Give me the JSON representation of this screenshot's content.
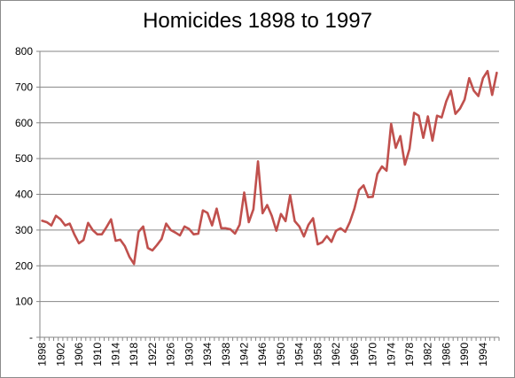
{
  "chart_data": {
    "type": "line",
    "title": "Homicides 1898 to 1997",
    "xlabel": "",
    "ylabel": "",
    "ylim": [
      0,
      800
    ],
    "yticks": [
      0,
      100,
      200,
      300,
      400,
      500,
      600,
      700,
      800
    ],
    "ytick_labels": [
      "-",
      "100",
      "200",
      "300",
      "400",
      "500",
      "600",
      "700",
      "800"
    ],
    "x_tick_labels": [
      "1898",
      "1902",
      "1906",
      "1910",
      "1914",
      "1918",
      "1922",
      "1926",
      "1930",
      "1934",
      "1938",
      "1942",
      "1946",
      "1950",
      "1954",
      "1958",
      "1962",
      "1966",
      "1970",
      "1974",
      "1978",
      "1982",
      "1986",
      "1990",
      "1994"
    ],
    "grid": "horizontal",
    "legend": "none",
    "line_color": "#c0504d",
    "x": [
      1898,
      1899,
      1900,
      1901,
      1902,
      1903,
      1904,
      1905,
      1906,
      1907,
      1908,
      1909,
      1910,
      1911,
      1912,
      1913,
      1914,
      1915,
      1916,
      1917,
      1918,
      1919,
      1920,
      1921,
      1922,
      1923,
      1924,
      1925,
      1926,
      1927,
      1928,
      1929,
      1930,
      1931,
      1932,
      1933,
      1934,
      1935,
      1936,
      1937,
      1938,
      1939,
      1940,
      1941,
      1942,
      1943,
      1944,
      1945,
      1946,
      1947,
      1948,
      1949,
      1950,
      1951,
      1952,
      1953,
      1954,
      1955,
      1956,
      1957,
      1958,
      1959,
      1960,
      1961,
      1962,
      1963,
      1964,
      1965,
      1966,
      1967,
      1968,
      1969,
      1970,
      1971,
      1972,
      1973,
      1974,
      1975,
      1976,
      1977,
      1978,
      1979,
      1980,
      1981,
      1982,
      1983,
      1984,
      1985,
      1986,
      1987,
      1988,
      1989,
      1990,
      1991,
      1992,
      1993,
      1994,
      1995,
      1996,
      1997
    ],
    "series": [
      {
        "values": [
          326,
          322,
          313,
          340,
          330,
          313,
          318,
          288,
          263,
          272,
          320,
          300,
          288,
          288,
          308,
          330,
          270,
          273,
          255,
          225,
          205,
          295,
          310,
          250,
          243,
          258,
          275,
          318,
          300,
          293,
          285,
          310,
          303,
          288,
          290,
          355,
          348,
          313,
          360,
          305,
          305,
          302,
          290,
          315,
          405,
          322,
          358,
          492,
          347,
          370,
          340,
          298,
          345,
          325,
          398,
          325,
          310,
          282,
          315,
          333,
          260,
          266,
          283,
          267,
          298,
          305,
          295,
          322,
          360,
          412,
          425,
          392,
          393,
          457,
          478,
          466,
          597,
          530,
          563,
          483,
          527,
          628,
          620,
          558,
          618,
          550,
          620,
          615,
          660,
          690,
          625,
          640,
          665,
          725,
          690,
          675,
          725,
          745,
          678,
          740
        ]
      }
    ]
  }
}
